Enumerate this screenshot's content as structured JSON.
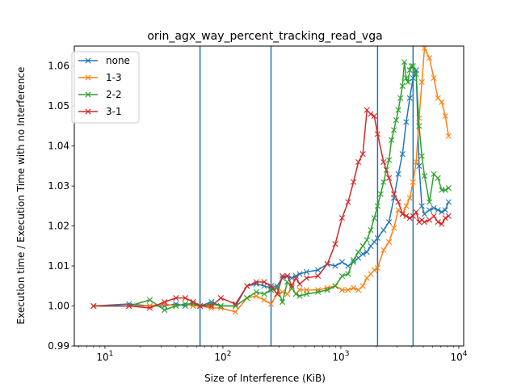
{
  "chart_data": {
    "type": "line",
    "title": "orin_agx_way_percent_tracking_read_vga",
    "xlabel": "Size of Interference (KiB)",
    "ylabel": "Execution time / Execution Time with no Interference",
    "xscale": "log",
    "xlim": [
      5.5,
      11000
    ],
    "ylim": [
      0.99,
      1.065
    ],
    "x_ticks": [
      {
        "value": 10,
        "base": "10",
        "exp": "1"
      },
      {
        "value": 100,
        "base": "10",
        "exp": "2"
      },
      {
        "value": 1000,
        "base": "10",
        "exp": "3"
      },
      {
        "value": 10000,
        "base": "10",
        "exp": "4"
      }
    ],
    "y_ticks": [
      {
        "value": 0.99,
        "label": "0.99"
      },
      {
        "value": 1.0,
        "label": "1.00"
      },
      {
        "value": 1.01,
        "label": "1.01"
      },
      {
        "value": 1.02,
        "label": "1.02"
      },
      {
        "value": 1.03,
        "label": "1.03"
      },
      {
        "value": 1.04,
        "label": "1.04"
      },
      {
        "value": 1.05,
        "label": "1.05"
      },
      {
        "value": 1.06,
        "label": "1.06"
      }
    ],
    "vlines": [
      64,
      256,
      2048,
      4096
    ],
    "vline_color": "#1f77b4",
    "legend_position": "upper-left",
    "series": [
      {
        "name": "none",
        "color": "#1f77b4",
        "x": [
          8,
          16,
          24,
          32,
          40,
          48,
          56,
          64,
          80,
          96,
          128,
          160,
          192,
          224,
          256,
          288,
          320,
          352,
          384,
          416,
          448,
          512,
          640,
          768,
          896,
          1024,
          1152,
          1280,
          1408,
          1536,
          1664,
          1792,
          1920,
          2048,
          2304,
          2560,
          2816,
          3072,
          3328,
          3584,
          3840,
          4096,
          4352,
          4608,
          4864,
          5120,
          5632,
          6144,
          6656,
          7168,
          7680,
          8192
        ],
        "y": [
          1.0,
          1.0005,
          1.0,
          1.0,
          1.0005,
          1.0,
          1.001,
          1.0,
          1.001,
          1.0,
          1.0,
          1.005,
          1.0055,
          1.005,
          1.0045,
          1.005,
          1.007,
          1.0075,
          1.007,
          1.0075,
          1.008,
          1.0085,
          1.009,
          1.0105,
          1.01,
          1.011,
          1.01,
          1.011,
          1.012,
          1.013,
          1.0135,
          1.015,
          1.016,
          1.017,
          1.019,
          1.021,
          1.027,
          1.033,
          1.038,
          1.046,
          1.052,
          1.057,
          1.059,
          1.035,
          1.025,
          1.023,
          1.024,
          1.0245,
          1.024,
          1.0235,
          1.024,
          1.026
        ]
      },
      {
        "name": "1-3",
        "color": "#ff7f0e",
        "x": [
          8,
          16,
          24,
          32,
          40,
          48,
          56,
          64,
          80,
          96,
          128,
          160,
          192,
          224,
          256,
          288,
          320,
          352,
          384,
          416,
          448,
          512,
          640,
          768,
          896,
          1024,
          1152,
          1280,
          1408,
          1536,
          1664,
          1792,
          1920,
          2048,
          2304,
          2560,
          2816,
          3072,
          3328,
          3584,
          3840,
          4096,
          4352,
          4608,
          4864,
          5120,
          5632,
          6144,
          6656,
          7168,
          7680,
          8192
        ],
        "y": [
          1.0,
          1.0,
          1.0,
          1.0005,
          1.0,
          1.0005,
          1.0,
          1.0,
          0.9995,
          0.9995,
          0.9985,
          1.002,
          1.0025,
          1.0015,
          1.0005,
          1.003,
          1.0035,
          1.003,
          1.0045,
          1.003,
          1.004,
          1.004,
          1.004,
          1.0045,
          1.005,
          1.004,
          1.004,
          1.0045,
          1.004,
          1.005,
          1.007,
          1.008,
          1.009,
          1.0095,
          1.014,
          1.016,
          1.0195,
          1.024,
          1.023,
          1.025,
          1.027,
          1.031,
          1.036,
          1.047,
          1.056,
          1.0645,
          1.062,
          1.057,
          1.052,
          1.051,
          1.0475,
          1.0425
        ]
      },
      {
        "name": "2-2",
        "color": "#2ca02c",
        "x": [
          8,
          16,
          24,
          32,
          40,
          48,
          56,
          64,
          80,
          96,
          128,
          160,
          192,
          224,
          256,
          288,
          320,
          352,
          384,
          416,
          448,
          512,
          640,
          768,
          896,
          1024,
          1152,
          1280,
          1408,
          1536,
          1664,
          1792,
          1920,
          2048,
          2176,
          2304,
          2432,
          2560,
          2688,
          2816,
          2944,
          3072,
          3200,
          3328,
          3456,
          3584,
          3712,
          3840,
          3968,
          4096,
          4352,
          4608,
          4864,
          5120,
          5632,
          6144,
          6656,
          7168,
          7680,
          8192
        ],
        "y": [
          1.0,
          1.0,
          1.0015,
          0.999,
          1.0,
          1.0005,
          1.0005,
          1.0,
          1.0005,
          1.0,
          1.0,
          1.002,
          1.0035,
          1.003,
          1.004,
          1.0045,
          1.001,
          1.006,
          1.0045,
          1.003,
          1.0025,
          1.003,
          1.0035,
          1.004,
          1.005,
          1.0075,
          1.008,
          1.0115,
          1.0135,
          1.015,
          1.0165,
          1.019,
          1.022,
          1.025,
          1.028,
          1.031,
          1.034,
          1.0365,
          1.0415,
          1.044,
          1.0465,
          1.049,
          1.052,
          1.055,
          1.061,
          1.057,
          1.056,
          1.059,
          1.06,
          1.06,
          1.058,
          1.045,
          1.0375,
          1.0325,
          1.026,
          1.033,
          1.032,
          1.029,
          1.029,
          1.0295
        ]
      },
      {
        "name": "3-1",
        "color": "#d62728",
        "x": [
          8,
          16,
          24,
          32,
          40,
          48,
          56,
          64,
          80,
          96,
          128,
          160,
          192,
          224,
          256,
          288,
          320,
          352,
          384,
          416,
          448,
          512,
          640,
          768,
          896,
          1024,
          1152,
          1280,
          1408,
          1536,
          1664,
          1792,
          1920,
          2048,
          2304,
          2560,
          2816,
          3072,
          3328,
          3584,
          3840,
          4096,
          4352,
          4608,
          4864,
          5120,
          5632,
          6144,
          6656,
          7168,
          7680,
          8192
        ],
        "y": [
          1.0,
          1.0,
          0.9995,
          1.001,
          1.002,
          1.002,
          1.001,
          1.0,
          1.0,
          1.002,
          1.0005,
          1.005,
          1.006,
          1.006,
          1.005,
          1.003,
          1.0075,
          1.0075,
          1.005,
          1.007,
          1.0055,
          1.007,
          1.0075,
          1.0105,
          1.0155,
          1.022,
          1.026,
          1.031,
          1.036,
          1.038,
          1.049,
          1.048,
          1.0475,
          1.043,
          1.036,
          1.032,
          1.028,
          1.026,
          1.023,
          1.0225,
          1.022,
          1.0225,
          1.0235,
          1.021,
          1.0215,
          1.021,
          1.0215,
          1.0225,
          1.021,
          1.0205,
          1.022,
          1.0225
        ]
      }
    ]
  }
}
